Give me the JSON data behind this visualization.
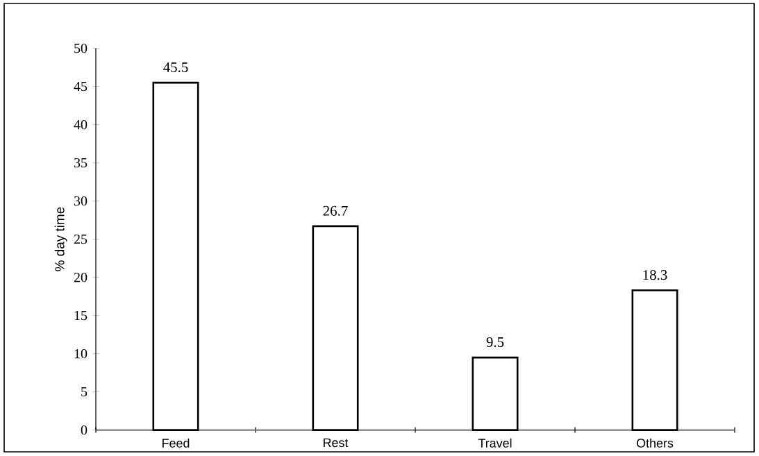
{
  "chart_data": {
    "type": "bar",
    "ylabel": "% day time",
    "categories": [
      "Feed",
      "Rest",
      "Travel",
      "Others"
    ],
    "values": [
      45.5,
      26.7,
      9.5,
      18.3
    ],
    "color": "#ffffff",
    "ylim": [
      0,
      50
    ],
    "yticks": [
      0,
      5,
      10,
      15,
      20,
      25,
      30,
      35,
      40,
      45,
      50
    ],
    "data_labels": true,
    "grid": false
  }
}
